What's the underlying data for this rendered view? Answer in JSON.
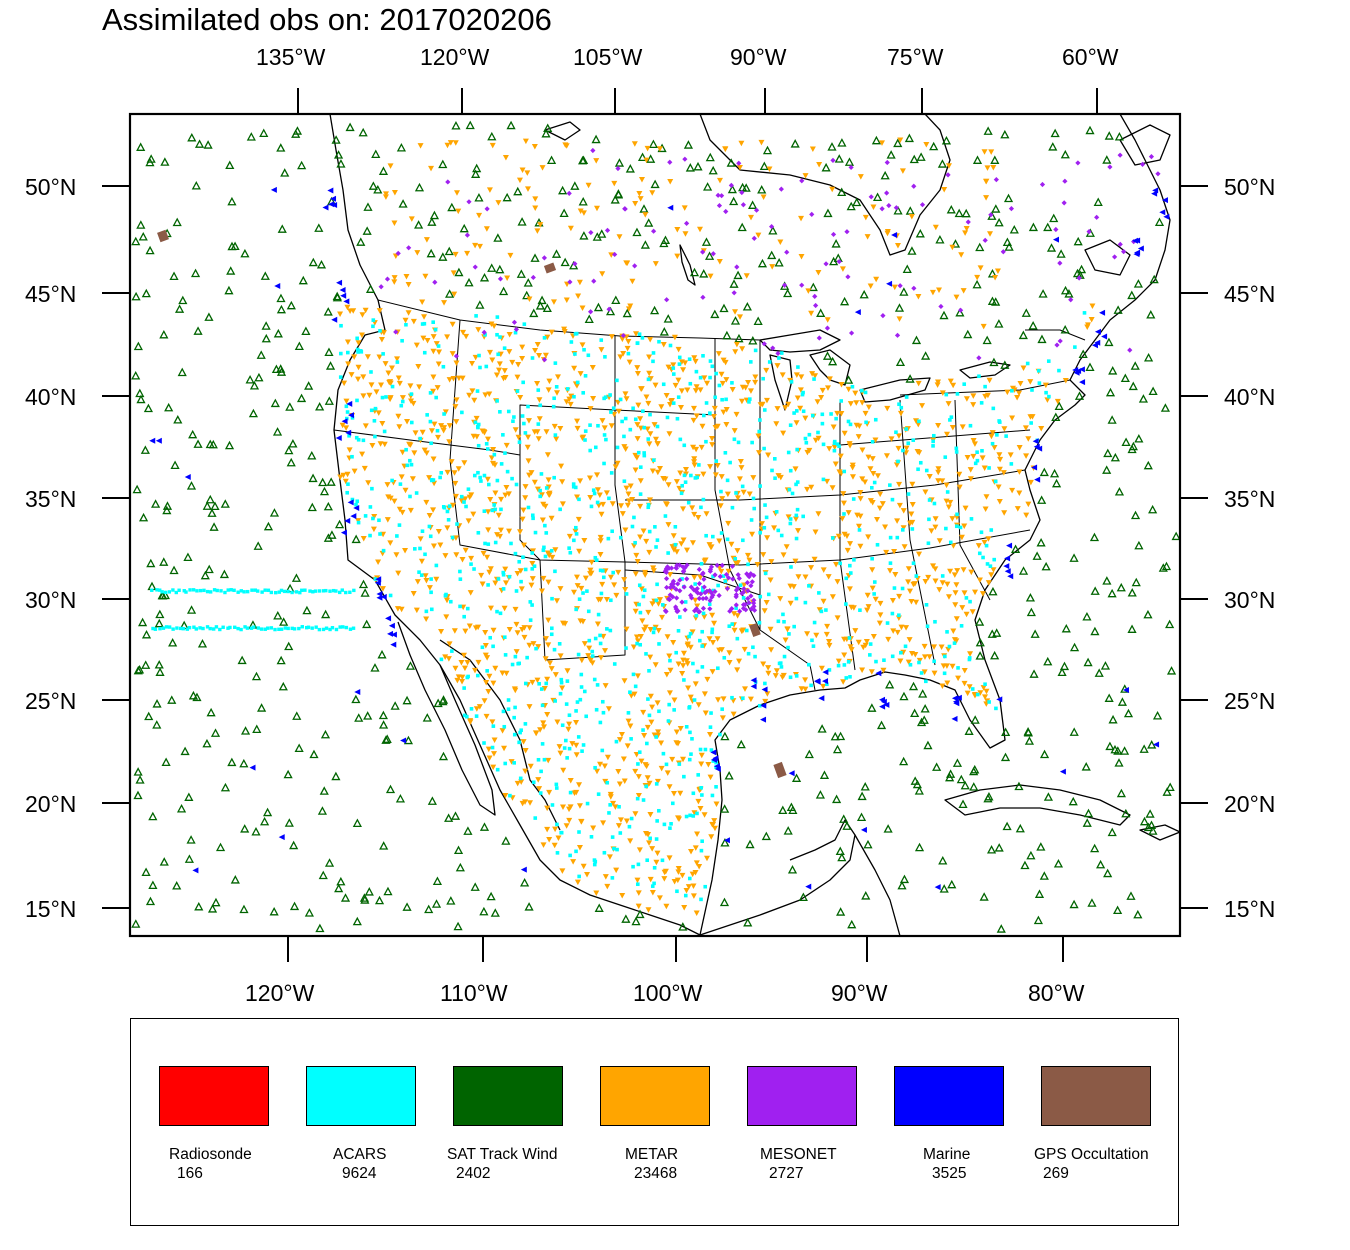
{
  "title": "Assimilated obs on: 2017020206",
  "map": {
    "top_axis_labels": [
      "135°W",
      "120°W",
      "105°W",
      "90°W",
      "75°W",
      "60°W"
    ],
    "bottom_axis_labels": [
      "120°W",
      "110°W",
      "100°W",
      "90°W",
      "80°W"
    ],
    "left_axis_labels": [
      "50°N",
      "45°N",
      "40°N",
      "35°N",
      "30°N",
      "25°N",
      "20°N",
      "15°N"
    ],
    "right_axis_labels": [
      "50°N",
      "45°N",
      "40°N",
      "35°N",
      "30°N",
      "25°N",
      "20°N",
      "15°N"
    ],
    "bottom_axis_lons": [
      -120,
      -110,
      -100,
      -90,
      -80
    ],
    "lat_values": [
      50,
      45,
      40,
      35,
      30,
      25,
      20,
      15
    ]
  },
  "legend": {
    "items": [
      {
        "name": "Radiosonde",
        "count": "166",
        "color": "#ff0000",
        "marker": "none"
      },
      {
        "name": "ACARS",
        "count": "9624",
        "color": "#00ffff",
        "marker": "dot"
      },
      {
        "name": "SAT Track Wind",
        "count": "2402",
        "color": "#006400",
        "marker": "triangle-up-hollow"
      },
      {
        "name": "METAR",
        "count": "23468",
        "color": "#ffa500",
        "marker": "triangle-down"
      },
      {
        "name": "MESONET",
        "count": "2727",
        "color": "#a020f0",
        "marker": "diamond"
      },
      {
        "name": "Marine",
        "count": "3525",
        "color": "#0000ff",
        "marker": "triangle-left"
      },
      {
        "name": "GPS Occultation",
        "count": "269",
        "color": "#8b5a46",
        "marker": "square"
      }
    ]
  }
}
